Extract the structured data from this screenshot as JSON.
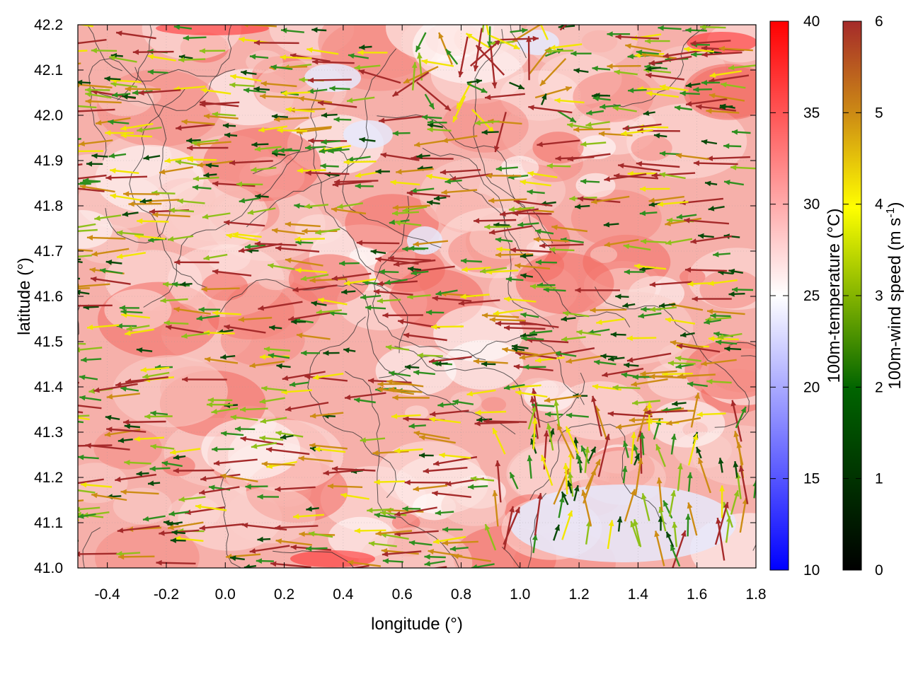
{
  "chart_data": {
    "type": "heatmap",
    "title": "",
    "xlabel": "longitude (°)",
    "ylabel": "latitude (°)",
    "xlim": [
      -0.5,
      1.8
    ],
    "ylim": [
      41.0,
      42.2
    ],
    "xticks": [
      "-0.4",
      "-0.2",
      "0.0",
      "0.2",
      "0.4",
      "0.6",
      "0.8",
      "1.0",
      "1.2",
      "1.4",
      "1.6",
      "1.8"
    ],
    "xtick_values": [
      -0.4,
      -0.2,
      0.0,
      0.2,
      0.4,
      0.6,
      0.8,
      1.0,
      1.2,
      1.4,
      1.6,
      1.8
    ],
    "yticks": [
      "41.0",
      "41.1",
      "41.2",
      "41.3",
      "41.4",
      "41.5",
      "41.6",
      "41.7",
      "41.8",
      "41.9",
      "42.0",
      "42.1",
      "42.2"
    ],
    "ytick_values": [
      41.0,
      41.1,
      41.2,
      41.3,
      41.4,
      41.5,
      41.6,
      41.7,
      41.8,
      41.9,
      42.0,
      42.1,
      42.2
    ],
    "grid": true,
    "temperature_colorbar": {
      "label": "100m-temperature (°C)",
      "range": [
        10,
        40
      ],
      "ticks": [
        "10",
        "15",
        "20",
        "25",
        "30",
        "35",
        "40"
      ],
      "tick_values": [
        10,
        15,
        20,
        25,
        30,
        35,
        40
      ],
      "colors": [
        "#0000ff",
        "#ffffff",
        "#ff0000"
      ]
    },
    "wind_colorbar": {
      "label_main": "100m-wind speed (m s",
      "label_sup": "-1",
      "label_end": ")",
      "range": [
        0,
        6
      ],
      "ticks": [
        "0",
        "1",
        "2",
        "3",
        "4",
        "5",
        "6"
      ],
      "tick_values": [
        0,
        1,
        2,
        3,
        4,
        5,
        6
      ],
      "colors": [
        "#000000",
        "#006400",
        "#ffff00",
        "#cd8c14",
        "#a52a2a"
      ]
    }
  }
}
